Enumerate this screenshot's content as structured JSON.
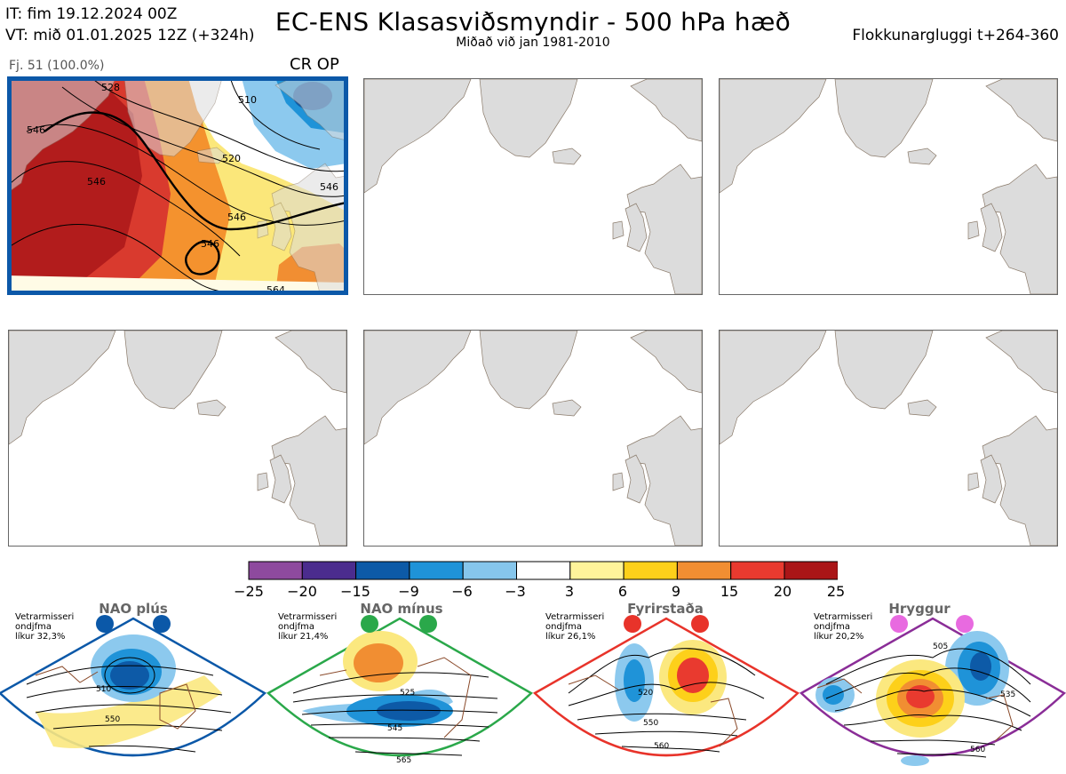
{
  "header": {
    "it_line": "IT: fim 19.12.2024 00Z",
    "vt_line": "VT: mið 01.01.2025 12Z  (+324h)",
    "title": "EC-ENS Klasasviðsmyndir - 500 hPa hæð",
    "subtitle": "Miðað við jan 1981-2010",
    "window": "Flokkunargluggi t+264-360"
  },
  "selected_panel": {
    "caption": "Fj. 51 (100.0%)",
    "tag": "CR OP",
    "contour_labels": [
      "528",
      "546",
      "546",
      "510",
      "520",
      "546",
      "546",
      "564",
      "546"
    ]
  },
  "colorbar": {
    "ticks": [
      "−25",
      "−20",
      "−15",
      "−9",
      "−6",
      "−3",
      "3",
      "6",
      "9",
      "15",
      "20",
      "25"
    ],
    "colors": [
      "#8e4a9e",
      "#4b2c8e",
      "#0d5aa7",
      "#1f93d8",
      "#86c6ec",
      "#ffffff",
      "#fff49a",
      "#fdd01a",
      "#f18e32",
      "#e93a2f",
      "#aa1517"
    ]
  },
  "regimes": [
    {
      "title": "NAO plús",
      "note_lines": [
        "Vetrarmisseri",
        "ondjfma",
        "líkur 32,3%"
      ],
      "color": "#0b58a8",
      "contour_labels": [
        "510",
        "550"
      ]
    },
    {
      "title": "NAO mínus",
      "note_lines": [
        "Vetrarmisseri",
        "ondjfma",
        "líkur 21,4%"
      ],
      "color": "#2aa84a",
      "contour_labels": [
        "525",
        "545",
        "565"
      ]
    },
    {
      "title": "Fyrirstaða",
      "note_lines": [
        "Vetrarmisseri",
        "ondjfma",
        "líkur 26,1%"
      ],
      "color": "#e8332a",
      "contour_labels": [
        "520",
        "550",
        "560"
      ]
    },
    {
      "title": "Hryggur",
      "note_lines": [
        "Vetrarmisseri",
        "ondjfma",
        "líkur 20,2%"
      ],
      "color": "#8a2d97",
      "contour_labels": [
        "505",
        "535",
        "560"
      ]
    }
  ]
}
